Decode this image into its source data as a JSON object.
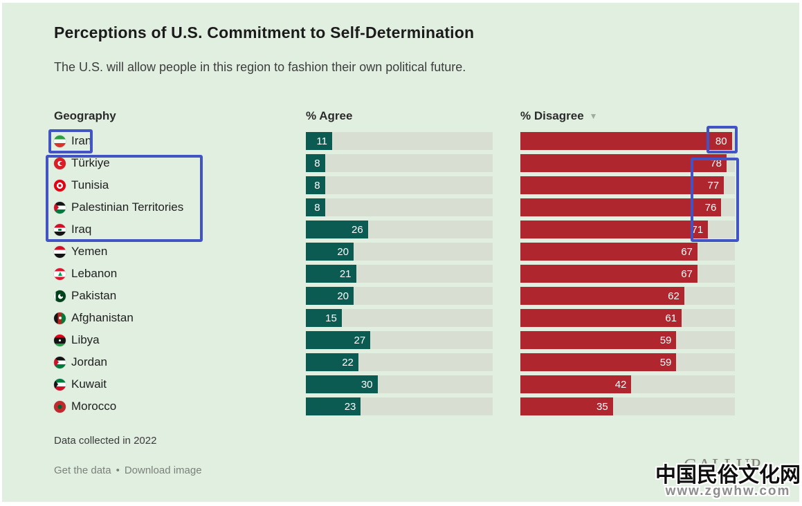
{
  "chart": {
    "title": "Perceptions of U.S. Commitment to Self-Determination",
    "subtitle": "The U.S. will allow people in this region to fashion their own political future.",
    "columns": {
      "geography": "Geography",
      "agree": "% Agree",
      "disagree": "% Disagree"
    },
    "sort_indicator": "▼",
    "note": "Data collected in 2022",
    "links": {
      "get_data": "Get the data",
      "separator": "•",
      "download": "Download image"
    },
    "brand": "GALLUP"
  },
  "rows": [
    {
      "name": "Iran",
      "flag": "iran",
      "agree": 11,
      "disagree": 80
    },
    {
      "name": "Türkiye",
      "flag": "turkiye",
      "agree": 8,
      "disagree": 78
    },
    {
      "name": "Tunisia",
      "flag": "tunisia",
      "agree": 8,
      "disagree": 77
    },
    {
      "name": "Palestinian Territories",
      "flag": "palestinian-territories",
      "agree": 8,
      "disagree": 76
    },
    {
      "name": "Iraq",
      "flag": "iraq",
      "agree": 26,
      "disagree": 71
    },
    {
      "name": "Yemen",
      "flag": "yemen",
      "agree": 20,
      "disagree": 67
    },
    {
      "name": "Lebanon",
      "flag": "lebanon",
      "agree": 21,
      "disagree": 67
    },
    {
      "name": "Pakistan",
      "flag": "pakistan",
      "agree": 20,
      "disagree": 62
    },
    {
      "name": "Afghanistan",
      "flag": "afghanistan",
      "agree": 15,
      "disagree": 61
    },
    {
      "name": "Libya",
      "flag": "libya",
      "agree": 27,
      "disagree": 59
    },
    {
      "name": "Jordan",
      "flag": "jordan",
      "agree": 22,
      "disagree": 59
    },
    {
      "name": "Kuwait",
      "flag": "kuwait",
      "agree": 30,
      "disagree": 42
    },
    {
      "name": "Morocco",
      "flag": "morocco",
      "agree": 23,
      "disagree": 35
    }
  ],
  "chart_data": {
    "type": "bar",
    "orientation": "horizontal",
    "title": "Perceptions of U.S. Commitment to Self-Determination",
    "subtitle": "The U.S. will allow people in this region to fashion their own political future.",
    "categories": [
      "Iran",
      "Türkiye",
      "Tunisia",
      "Palestinian Territories",
      "Iraq",
      "Yemen",
      "Lebanon",
      "Pakistan",
      "Afghanistan",
      "Libya",
      "Jordan",
      "Kuwait",
      "Morocco"
    ],
    "series": [
      {
        "name": "% Agree",
        "values": [
          11,
          8,
          8,
          8,
          26,
          20,
          21,
          20,
          15,
          27,
          22,
          30,
          23
        ]
      },
      {
        "name": "% Disagree",
        "values": [
          80,
          78,
          77,
          76,
          71,
          67,
          67,
          62,
          61,
          59,
          59,
          42,
          35
        ]
      }
    ],
    "value_range": [
      0,
      100
    ],
    "sorted_by": "% Disagree descending",
    "data_labels": "inside bar end, white",
    "note": "Data collected in 2022",
    "colors": {
      "agree_bar": "#0b5b53",
      "disagree_bar": "#b0262f",
      "track": "#d8ded2",
      "background": "#e1efe0",
      "annotation": "#4253c4"
    }
  },
  "watermark": {
    "line1": "中国民俗文化网",
    "line2": "www.zgwhw.com"
  }
}
